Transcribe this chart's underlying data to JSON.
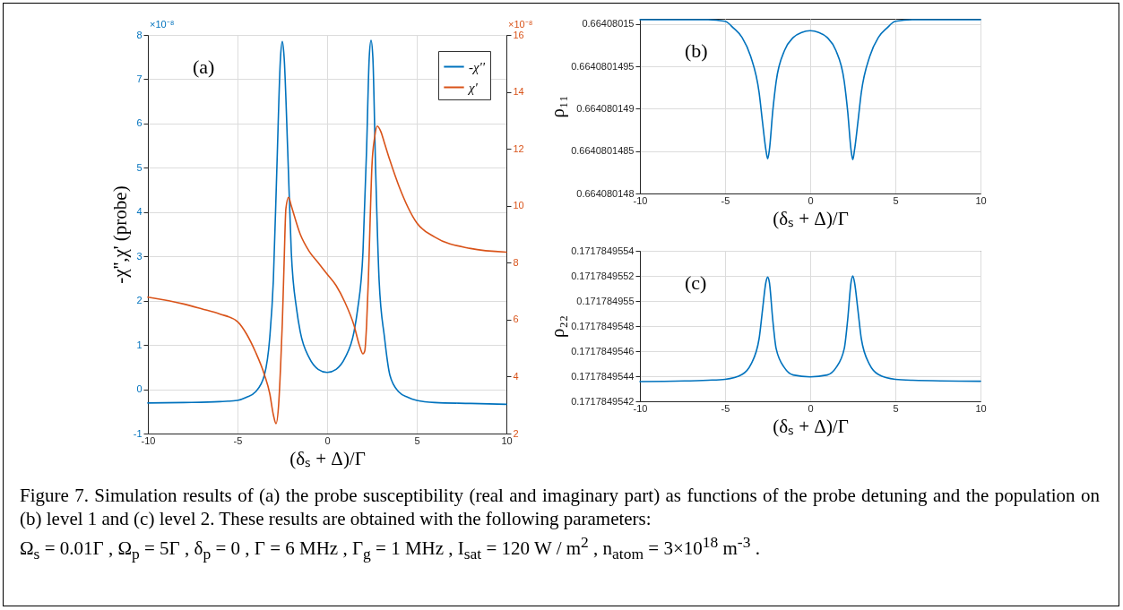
{
  "chart_data": [
    {
      "type": "line",
      "xlabel": "(δₛ + Δ)/Γ",
      "ylabel": "-χ'',χ' (probe)",
      "xlim": [
        -10,
        10
      ],
      "xticks": [
        -10,
        -5,
        0,
        5,
        10
      ],
      "ylim": [
        -1,
        8
      ],
      "yticks": [
        -1,
        0,
        1,
        2,
        3,
        4,
        5,
        6,
        7,
        8
      ],
      "y2lim": [
        2,
        16
      ],
      "y2ticks": [
        2,
        4,
        6,
        8,
        10,
        12,
        14,
        16
      ],
      "grid": true,
      "legend": "top right",
      "annotations": [
        "(a)",
        "×10⁻⁸",
        "×10⁻⁸",
        "Figure 7. Simulation results of (a) the probe susceptibility (real and imaginary part) as functions of the probe detuning and the population on (b) level 1 and (c) level 2. These results are obtained with the following parameters:",
        "Ω$_{s}$ = 0.01Γ , Ω$_{p}$ = 5Γ , δ$_{p}$ = 0 , Γ = 6 MHz , Γ$_{g}$ = 1 MHz , I$_{sat}$ = 120 W / m$^{2}$ , n$_{atom}$ = 3×10$^{18}$ m$^{-3}$ ."
      ],
      "series": [
        {
          "name": "-χ''",
          "color": "#0072bd",
          "x": [
            -10,
            -8,
            -6,
            -5,
            -4.5,
            -4,
            -3.5,
            -3.2,
            -3,
            -2.8,
            -2.6,
            -2.5,
            -2.4,
            -2.2,
            -2,
            -1.7,
            -1.5,
            -1,
            -0.5,
            0,
            0.5,
            1,
            1.5,
            1.7,
            2,
            2.2,
            2.35,
            2.45,
            2.55,
            2.7,
            2.9,
            3.2,
            3.5,
            4,
            4.5,
            5,
            6,
            8,
            10
          ],
          "values": [
            -0.31,
            -0.3,
            -0.28,
            -0.25,
            -0.18,
            -0.06,
            0.32,
            1.17,
            2.46,
            5.05,
            7.5,
            7.85,
            7.5,
            5.4,
            3.1,
            1.8,
            1.3,
            0.71,
            0.45,
            0.38,
            0.45,
            0.71,
            1.3,
            1.8,
            3.1,
            5.4,
            7.5,
            7.88,
            7.5,
            5.05,
            2.46,
            1.17,
            0.32,
            -0.06,
            -0.18,
            -0.25,
            -0.3,
            -0.32,
            -0.34
          ]
        },
        {
          "name": "χ'",
          "color": "#d95319",
          "axis": "y2",
          "x": [
            -10,
            -8,
            -7,
            -6,
            -5,
            -4.5,
            -4,
            -3.5,
            -3.2,
            -3,
            -2.85,
            -2.7,
            -2.6,
            -2.5,
            -2.4,
            -2.3,
            -2.15,
            -2,
            -1.5,
            -1,
            -0.5,
            0,
            0.5,
            1,
            1.5,
            1.8,
            2,
            2.1,
            2.2,
            2.3,
            2.4,
            2.5,
            2.65,
            2.8,
            3,
            3.2,
            3.5,
            4,
            5,
            6,
            8,
            10
          ],
          "values": [
            6.79,
            6.55,
            6.38,
            6.2,
            5.93,
            5.5,
            4.87,
            4.07,
            3.4,
            2.66,
            2.35,
            3.06,
            4.3,
            5.88,
            8.0,
            9.9,
            10.3,
            10.0,
            9.0,
            8.4,
            8.0,
            7.6,
            7.2,
            6.6,
            5.8,
            5.1,
            4.8,
            4.9,
            5.8,
            7.4,
            9.5,
            11.4,
            12.4,
            12.8,
            12.6,
            12.2,
            11.6,
            10.7,
            9.4,
            8.9,
            8.5,
            8.37
          ]
        }
      ]
    },
    {
      "type": "line",
      "xlabel": "(δₛ + Δ)/Γ",
      "ylabel": "ρ₁₁",
      "xlim": [
        -10,
        10
      ],
      "xticks": [
        -10,
        -5,
        0,
        5,
        10
      ],
      "ylim": [
        0.664080148,
        0.66408015006
      ],
      "yticks": [
        0.664080148,
        0.6640801485,
        0.664080149,
        0.6640801495,
        0.66408015
      ],
      "grid": true,
      "annotations": [
        "(b)"
      ],
      "series": [
        {
          "color": "#0072bd",
          "x": [
            -10,
            -6,
            -5,
            -4.5,
            -4,
            -3.5,
            -3,
            -2.8,
            -2.6,
            -2.5,
            -2.4,
            -2.2,
            -2,
            -1.5,
            -1,
            -0.5,
            0,
            0.5,
            1,
            1.5,
            2,
            2.2,
            2.4,
            2.5,
            2.6,
            2.8,
            3,
            3.5,
            4,
            4.5,
            5,
            6,
            10
          ],
          "values": [
            0.66408015005,
            0.66408015005,
            0.66408015003,
            0.66408014995,
            0.66408014984,
            0.66408014962,
            0.66408014919,
            0.66408014884,
            0.66408014851,
            0.66408014841,
            0.66408014851,
            0.66408014897,
            0.66408014932,
            0.66408014969,
            0.66408014984,
            0.6640801499,
            0.66408014992,
            0.6640801499,
            0.66408014984,
            0.66408014969,
            0.66408014932,
            0.66408014897,
            0.66408014851,
            0.6640801484,
            0.66408014851,
            0.66408014884,
            0.66408014919,
            0.66408014962,
            0.66408014984,
            0.66408014995,
            0.66408015003,
            0.66408015005,
            0.66408015005
          ]
        }
      ]
    },
    {
      "type": "line",
      "xlabel": "(δₛ + Δ)/Γ",
      "ylabel": "ρ₂₂",
      "xlim": [
        -10,
        10
      ],
      "xticks": [
        -10,
        -5,
        0,
        5,
        10
      ],
      "ylim": [
        0.1717849542,
        0.1717849554
      ],
      "yticks": [
        0.1717849542,
        0.1717849544,
        0.1717849546,
        0.1717849548,
        0.171784955,
        0.1717849552,
        0.1717849554
      ],
      "grid": true,
      "annotations": [
        "(c)"
      ],
      "series": [
        {
          "color": "#0072bd",
          "x": [
            -10,
            -6,
            -5,
            -4,
            -3.5,
            -3,
            -2.8,
            -2.6,
            -2.5,
            -2.4,
            -2.2,
            -2,
            -1.5,
            -1,
            0,
            1,
            1.5,
            2,
            2.2,
            2.4,
            2.5,
            2.6,
            2.8,
            3,
            3.5,
            4,
            5,
            6,
            10
          ],
          "values": [
            0.171784954357,
            0.171784954368,
            0.171784954375,
            0.171784954414,
            0.17178495449,
            0.1717849547,
            0.17178495493,
            0.17178495515,
            0.17178495519,
            0.17178495515,
            0.17178495485,
            0.17178495462,
            0.171784954465,
            0.17178495441,
            0.171784954395,
            0.17178495441,
            0.171784954465,
            0.17178495462,
            0.17178495485,
            0.17178495515,
            0.1717849552,
            0.17178495515,
            0.17178495493,
            0.1717849547,
            0.17178495449,
            0.171784954414,
            0.171784954375,
            0.171784954368,
            0.17178495436
          ]
        }
      ]
    }
  ]
}
